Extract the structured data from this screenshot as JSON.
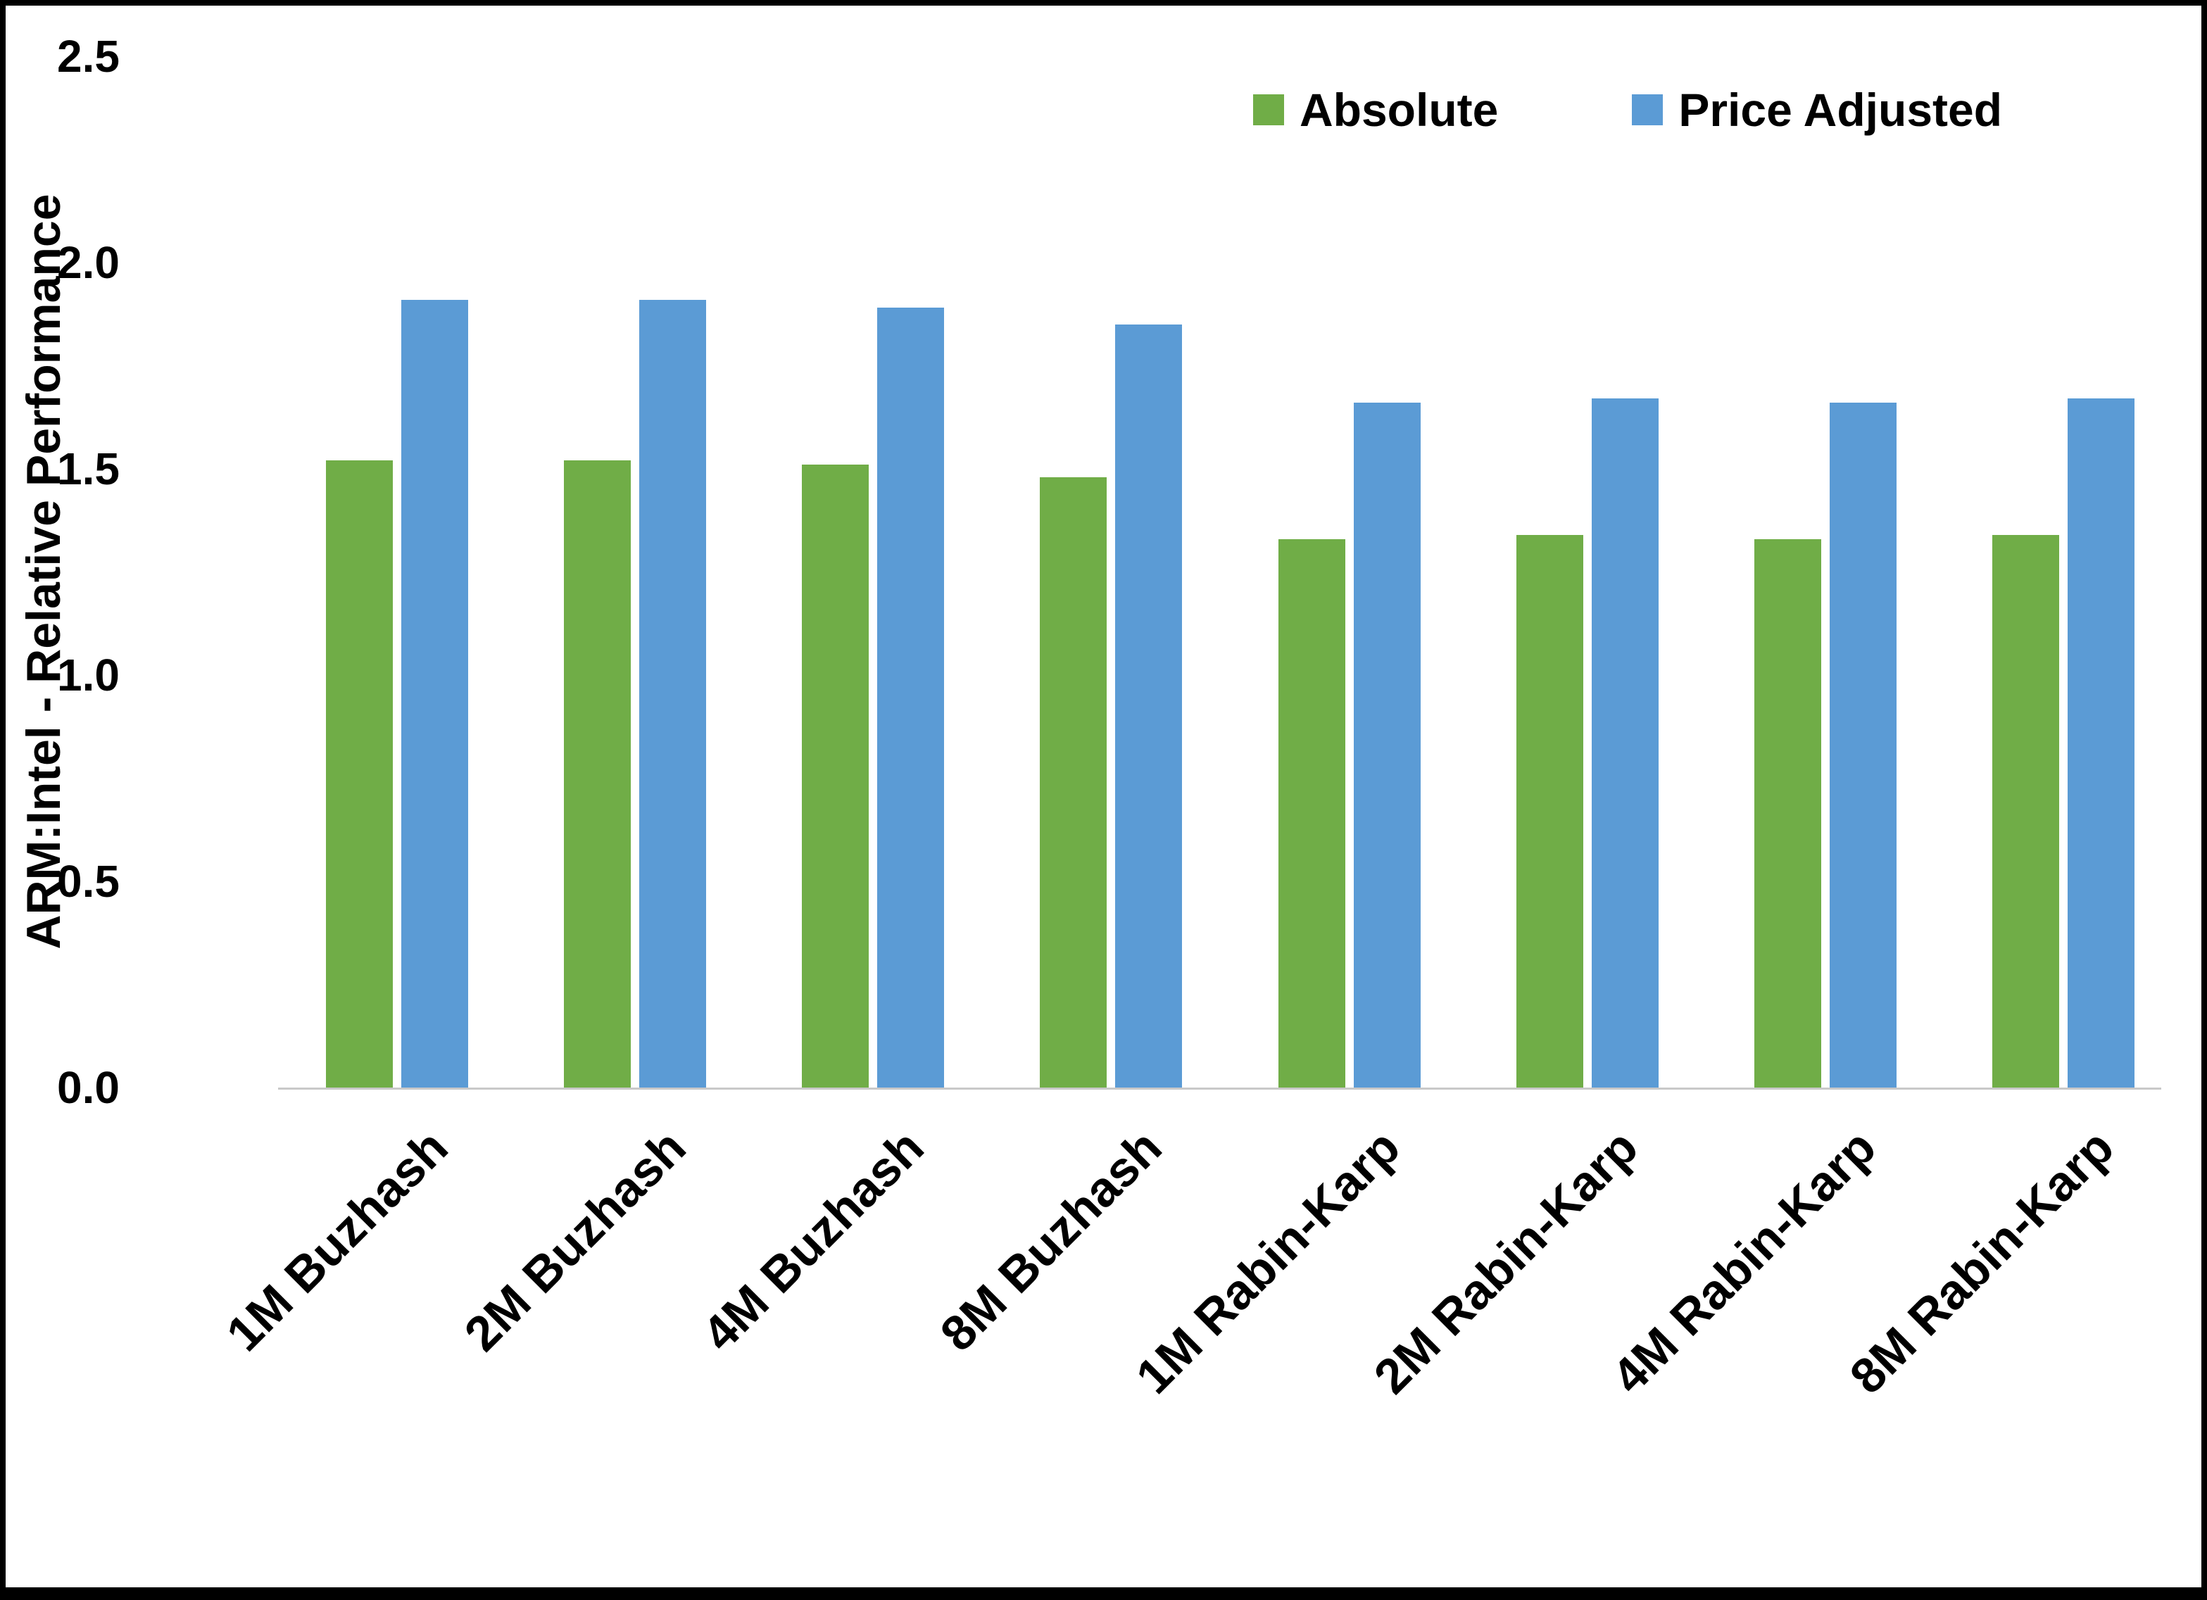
{
  "chart_data": {
    "type": "bar",
    "title": "",
    "xlabel": "",
    "ylabel": "ARM:Intel - Relative Performance",
    "ylim": [
      0,
      2.5
    ],
    "yticks": [
      "0.0",
      "0.5",
      "1.0",
      "1.5",
      "2.0",
      "2.5"
    ],
    "grid": false,
    "legend_position": "top-right",
    "categories": [
      "1M Buzhash",
      "2M Buzhash",
      "4M Buzhash",
      "8M Buzhash",
      "1M Rabin-Karp",
      "2M Rabin-Karp",
      "4M Rabin-Karp",
      "8M Rabin-Karp"
    ],
    "series": [
      {
        "name": "Absolute",
        "color": "#70AD47",
        "values": [
          1.52,
          1.52,
          1.51,
          1.48,
          1.33,
          1.34,
          1.33,
          1.34
        ]
      },
      {
        "name": "Price Adjusted",
        "color": "#5B9BD5",
        "values": [
          1.91,
          1.91,
          1.89,
          1.85,
          1.66,
          1.67,
          1.66,
          1.67
        ]
      }
    ]
  },
  "colors": {
    "axis_line": "#C9C9C9",
    "text": "#000000",
    "frame_border": "#000000",
    "background": "#FFFFFF"
  }
}
